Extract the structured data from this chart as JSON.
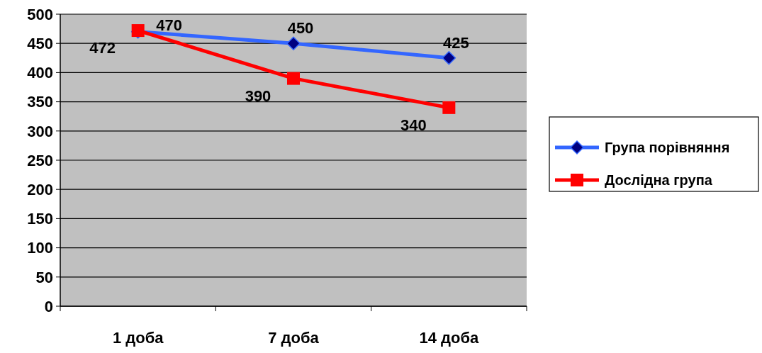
{
  "chart_data": {
    "type": "line",
    "categories": [
      "1 доба",
      "7 доба",
      "14 доба"
    ],
    "series": [
      {
        "name": "Група порівняння",
        "color": "#3366ff",
        "values": [
          470,
          450,
          425
        ],
        "marker": "diamond"
      },
      {
        "name": "Дослідна група",
        "color": "#ff0000",
        "values": [
          472,
          390,
          340
        ],
        "marker": "square"
      }
    ],
    "ylim": [
      0,
      500
    ],
    "yticks": [
      0,
      50,
      100,
      150,
      200,
      250,
      300,
      350,
      400,
      450,
      500
    ],
    "grid": "y",
    "legend": "right",
    "data_labels": true
  }
}
